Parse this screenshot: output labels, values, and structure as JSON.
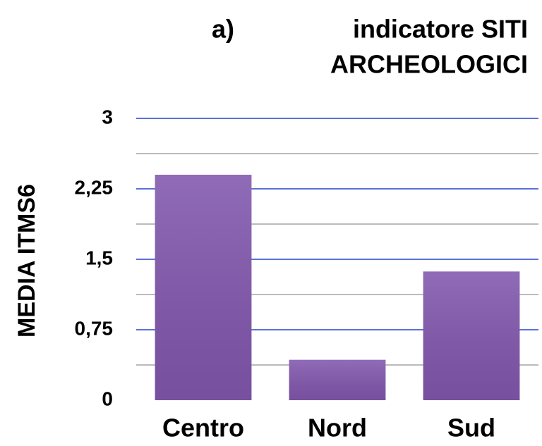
{
  "chart_data": {
    "type": "bar",
    "panel_label": "a)",
    "title": [
      "indicatore SITI",
      "ARCHEOLOGICI"
    ],
    "y_label": "MEDIA ITMS6",
    "categories": [
      "Centro",
      "Nord",
      "Sud"
    ],
    "values": [
      2.4,
      0.43,
      1.37
    ],
    "color": "#8157ad",
    "ylim": [
      0,
      3
    ],
    "yticks": [
      0,
      {
        "value": 0.75,
        "label": "0,75"
      },
      {
        "value": 1.5,
        "label": "1,5"
      },
      {
        "value": 2.25,
        "label": "2,25"
      },
      3
    ],
    "minor_yticks": [
      0.375,
      1.125,
      1.875,
      2.625
    ],
    "grid": true,
    "grid_color": "#2342c8",
    "minor_grid_color": "#bbbbbb"
  }
}
